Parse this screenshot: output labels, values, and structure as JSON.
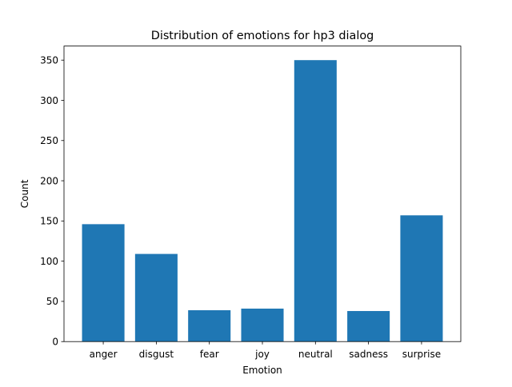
{
  "chart_data": {
    "type": "bar",
    "title": "Distribution of emotions for hp3 dialog",
    "xlabel": "Emotion",
    "ylabel": "Count",
    "categories": [
      "anger",
      "disgust",
      "fear",
      "joy",
      "neutral",
      "sadness",
      "surprise"
    ],
    "values": [
      146,
      109,
      39,
      41,
      350,
      38,
      157
    ],
    "ylim": [
      0,
      367.5
    ],
    "yticks": [
      0,
      50,
      100,
      150,
      200,
      250,
      300,
      350
    ],
    "grid": false,
    "legend": "none",
    "bar_color": "#1f77b4"
  }
}
